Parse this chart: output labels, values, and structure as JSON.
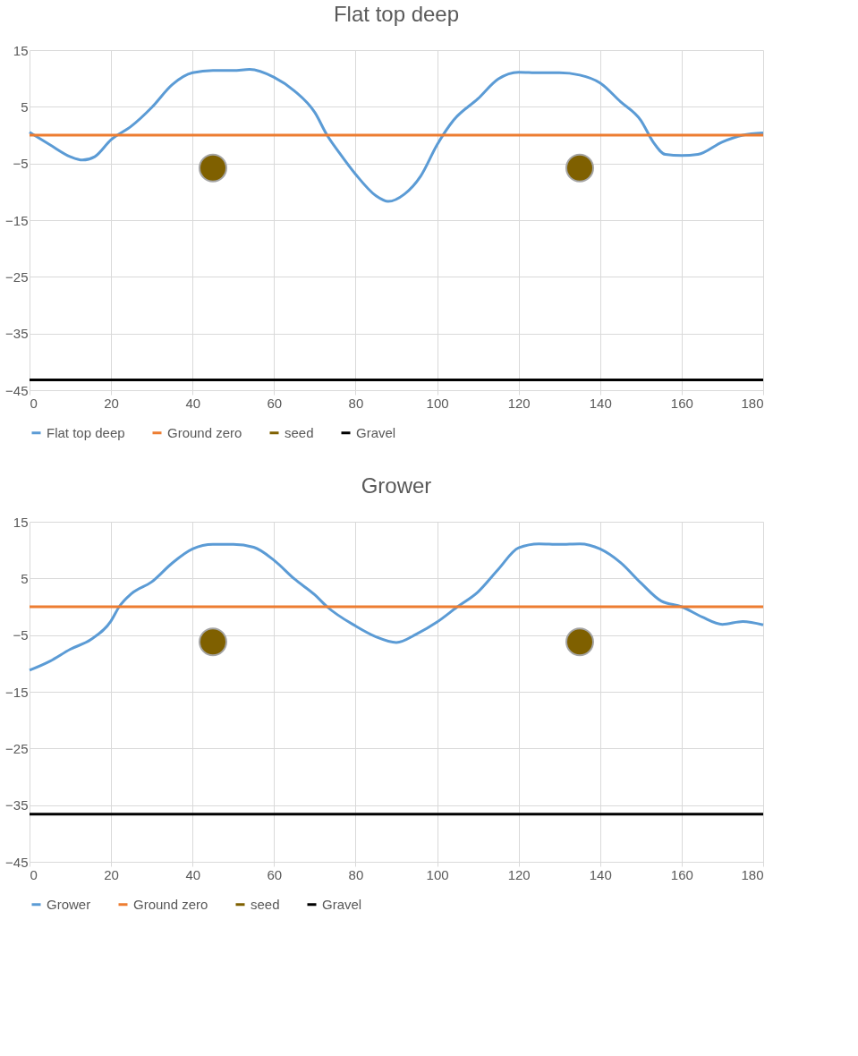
{
  "chart_data": [
    {
      "type": "line",
      "title": "Flat top deep",
      "xlim": [
        0,
        180
      ],
      "xticks": [
        0,
        20,
        40,
        60,
        80,
        100,
        120,
        140,
        160,
        180
      ],
      "ylim": [
        -45,
        15
      ],
      "yticks": [
        15,
        5,
        -5,
        -15,
        -25,
        -35,
        -45
      ],
      "grid": true,
      "legend": "bottom",
      "series": [
        {
          "name": "Flat top deep",
          "color": "#5b9bd5",
          "x": [
            0,
            5,
            10,
            13,
            16,
            20,
            25,
            30,
            35,
            40,
            45,
            50,
            54,
            60,
            65,
            70,
            73,
            76,
            80,
            85,
            88,
            92,
            96,
            100,
            104,
            110,
            115,
            120,
            125,
            130,
            135,
            140,
            145,
            150,
            153,
            156,
            160,
            164,
            170,
            175,
            180
          ],
          "values": [
            0.5,
            -1.7,
            -3.8,
            -4.4,
            -3.8,
            -0.8,
            1.6,
            4.9,
            8.9,
            11.0,
            11.4,
            11.4,
            11.6,
            10.2,
            7.8,
            4.0,
            0,
            -3.1,
            -6.9,
            -10.7,
            -11.7,
            -10.4,
            -7.2,
            -1.7,
            2.6,
            6.4,
            9.9,
            11.1,
            11.0,
            11.0,
            10.6,
            9.2,
            5.9,
            2.6,
            -1.2,
            -3.4,
            -3.6,
            -3.4,
            -1.2,
            0,
            0.4
          ]
        },
        {
          "name": "Ground zero",
          "color": "#ed7d31",
          "type": "line",
          "x": [
            0,
            180
          ],
          "values": [
            0,
            0
          ]
        },
        {
          "name": "seed",
          "color": "#7f6000",
          "type": "scatter",
          "marker": "circle",
          "x": [
            45,
            135
          ],
          "values": [
            -5.8,
            -5.8
          ]
        },
        {
          "name": "Gravel",
          "color": "#000000",
          "type": "line",
          "x": [
            0,
            180
          ],
          "values": [
            -43.2,
            -43.2
          ]
        }
      ]
    },
    {
      "type": "line",
      "title": "Grower",
      "xlim": [
        0,
        180
      ],
      "xticks": [
        0,
        20,
        40,
        60,
        80,
        100,
        120,
        140,
        160,
        180
      ],
      "ylim": [
        -45,
        15
      ],
      "yticks": [
        15,
        5,
        -5,
        -15,
        -25,
        -35,
        -45
      ],
      "grid": true,
      "legend": "bottom",
      "series": [
        {
          "name": "Grower",
          "color": "#5b9bd5",
          "x": [
            0,
            5,
            10,
            15,
            20,
            22,
            25,
            30,
            35,
            40,
            45,
            50,
            55,
            60,
            65,
            70,
            73,
            80,
            85,
            90,
            95,
            100,
            105,
            110,
            115,
            120,
            125,
            130,
            135,
            140,
            145,
            150,
            155,
            160,
            165,
            170,
            175,
            180
          ],
          "values": [
            -11.2,
            -9.6,
            -7.5,
            -5.8,
            -2.5,
            0,
            2.3,
            4.4,
            7.7,
            10.2,
            11.0,
            11.0,
            10.5,
            8.2,
            4.9,
            2.1,
            0,
            -3.4,
            -5.3,
            -6.3,
            -4.8,
            -2.7,
            0,
            2.6,
            6.6,
            10.4,
            11.1,
            11.0,
            11.1,
            10.2,
            7.8,
            4.2,
            1.0,
            0,
            -1.8,
            -3.1,
            -2.6,
            -3.2
          ]
        },
        {
          "name": "Ground zero",
          "color": "#ed7d31",
          "type": "line",
          "x": [
            0,
            180
          ],
          "values": [
            0,
            0
          ]
        },
        {
          "name": "seed",
          "color": "#7f6000",
          "type": "scatter",
          "marker": "circle",
          "x": [
            45,
            135
          ],
          "values": [
            -6.2,
            -6.2
          ]
        },
        {
          "name": "Gravel",
          "color": "#000000",
          "type": "line",
          "x": [
            0,
            180
          ],
          "values": [
            -36.6,
            -36.6
          ]
        }
      ]
    }
  ]
}
